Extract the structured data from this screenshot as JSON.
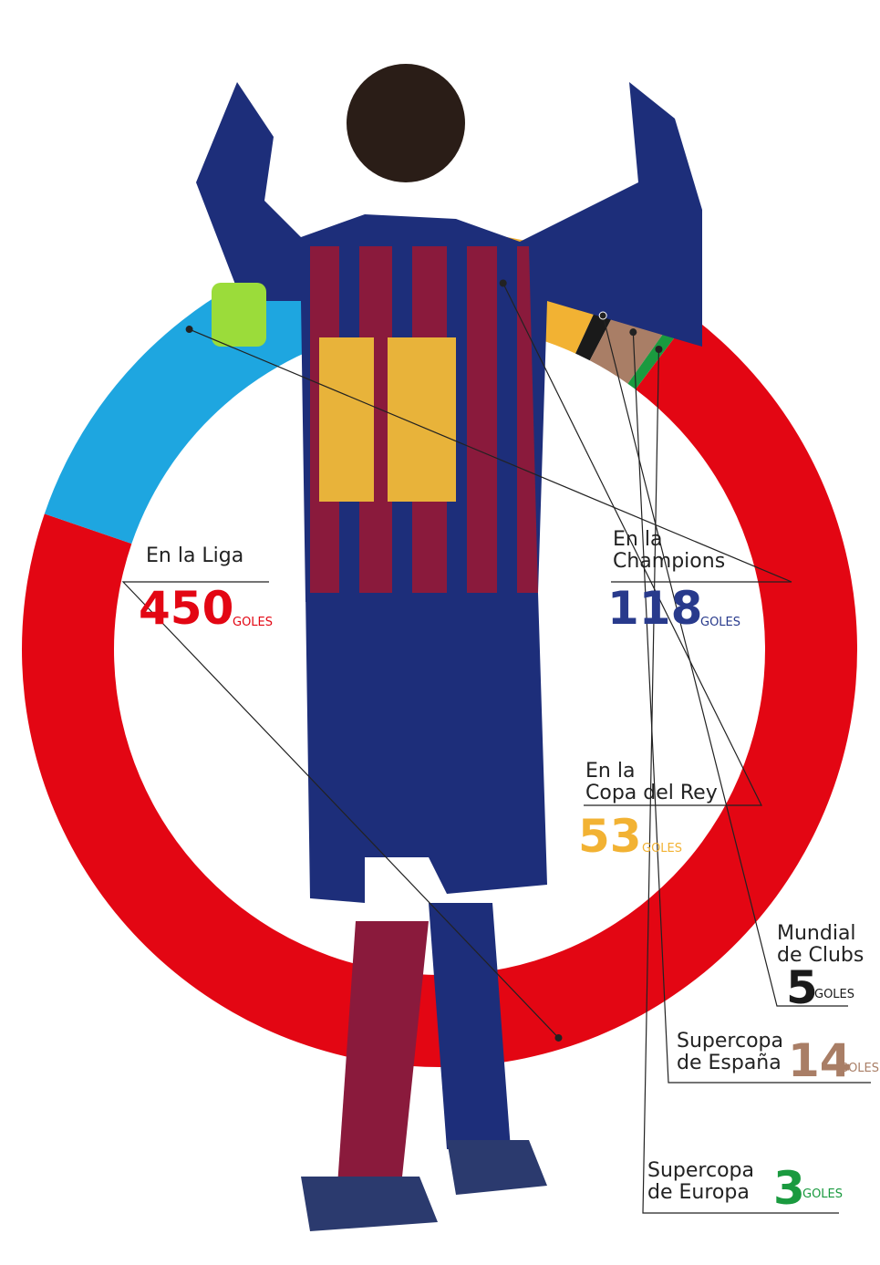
{
  "chart_data": {
    "type": "donut",
    "categories": [
      "En la Liga",
      "En la\nChampions",
      "En la\nCopa del Rey",
      "Mundial\nde Clubs",
      "Supercopa\nde España",
      "Supercopa\nde Europa"
    ],
    "values": [
      450,
      118,
      53,
      5,
      14,
      3
    ],
    "colors": [
      "#e30613",
      "#1ea6e0",
      "#f2b233",
      "#1a1a1a",
      "#a97e66",
      "#1a9a3f"
    ],
    "text_colors": [
      "#e30613",
      "#283a8c",
      "#f2b233",
      "#1a1a1a",
      "#a97e66",
      "#1a9a3f"
    ],
    "unit": "GOLES"
  }
}
